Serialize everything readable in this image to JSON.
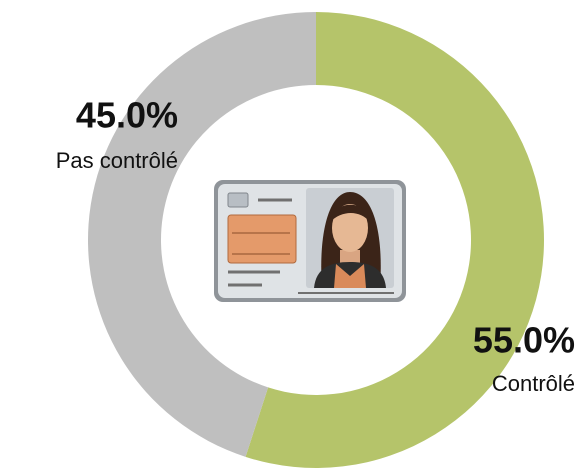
{
  "chart_data": {
    "type": "donut",
    "categories": [
      "Contrôlé",
      "Pas contrôlé"
    ],
    "values": [
      55.0,
      45.0
    ],
    "value_labels": [
      "55.0%",
      "45.0%"
    ],
    "colors": [
      "#b5c46a",
      "#bfbfbf"
    ]
  }
}
